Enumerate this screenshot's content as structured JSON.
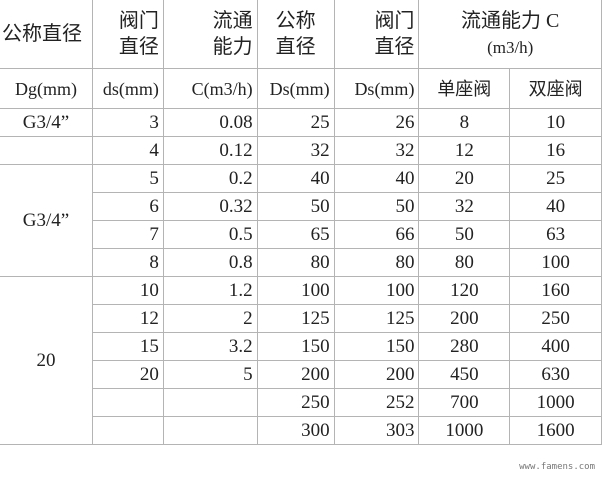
{
  "header": {
    "col1": "公称直径",
    "col2": [
      "阀门",
      "直径"
    ],
    "col3": [
      "流通",
      "能力"
    ],
    "col4": [
      "公称",
      "直径"
    ],
    "col5": [
      "阀门",
      "直径"
    ],
    "col67": [
      "流通能力 C",
      "(m3/h)"
    ],
    "units": [
      "Dg(mm)",
      "ds(mm)",
      "C(m3/h)",
      "Ds(mm)",
      "Ds(mm)",
      "单座阀",
      "双座阀"
    ]
  },
  "groups": [
    "G3/4”",
    "G3/4”",
    "20"
  ],
  "rows": [
    [
      "3",
      "0.08",
      "25",
      "26",
      "8",
      "10"
    ],
    [
      "4",
      "0.12",
      "32",
      "32",
      "12",
      "16"
    ],
    [
      "5",
      "0.2",
      "40",
      "40",
      "20",
      "25"
    ],
    [
      "6",
      "0.32",
      "50",
      "50",
      "32",
      "40"
    ],
    [
      "7",
      "0.5",
      "65",
      "66",
      "50",
      "63"
    ],
    [
      "8",
      "0.8",
      "80",
      "80",
      "80",
      "100"
    ],
    [
      "10",
      "1.2",
      "100",
      "100",
      "120",
      "160"
    ],
    [
      "12",
      "2",
      "125",
      "125",
      "200",
      "250"
    ],
    [
      "15",
      "3.2",
      "150",
      "150",
      "280",
      "400"
    ],
    [
      "20",
      "5",
      "200",
      "200",
      "450",
      "630"
    ],
    [
      "",
      "",
      "250",
      "252",
      "700",
      "1000"
    ],
    [
      "",
      "",
      "300",
      "303",
      "1000",
      "1600"
    ]
  ],
  "watermark": "www.famens.com"
}
